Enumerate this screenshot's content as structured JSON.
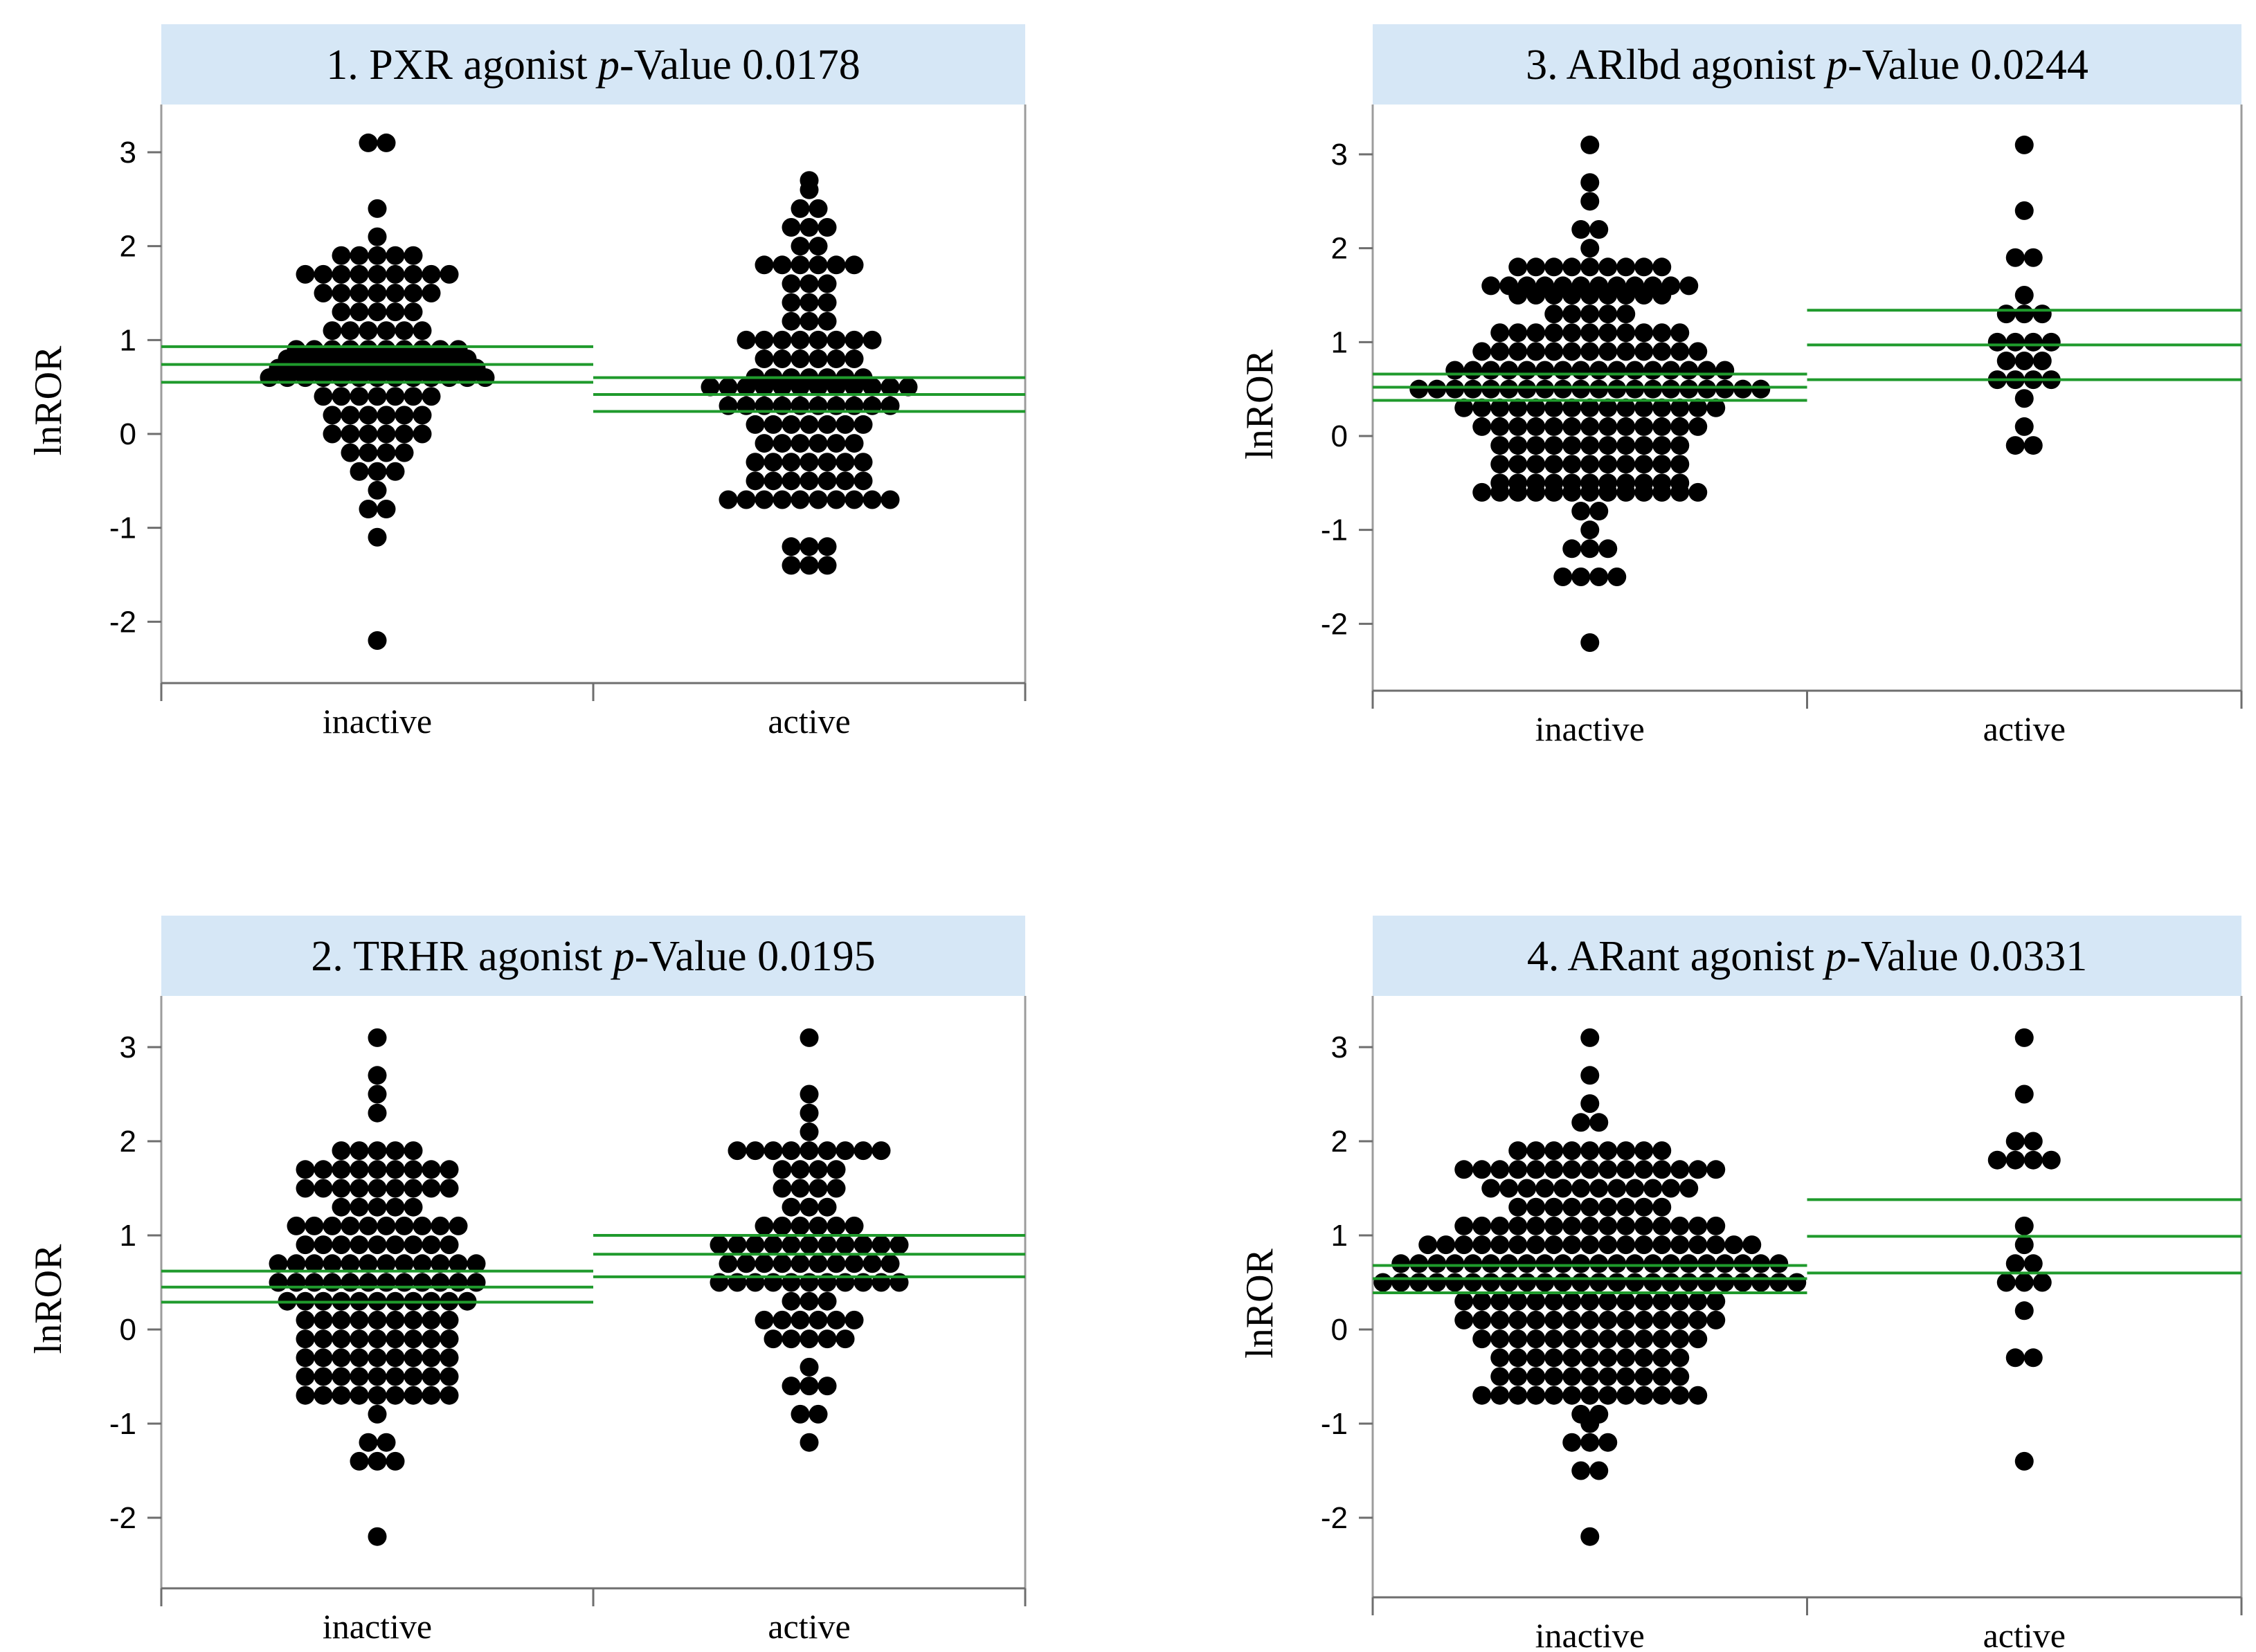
{
  "chart_data": [
    {
      "type": "scatter",
      "subtype": "dot-strip",
      "title_prefix": "1. PXR agonist",
      "title_p": "p",
      "title_suffix": "-Value",
      "title_value": "0.0178",
      "ylabel": "lnROR",
      "ylim": [
        -2.6,
        3.6
      ],
      "yticks": [
        "3",
        "2",
        "1",
        "0",
        "-1",
        "-2"
      ],
      "categories": [
        "inactive",
        "active"
      ],
      "series": [
        {
          "name": "inactive",
          "counts": {
            "3.1": 2,
            "2.4": 1,
            "2.1": 1,
            "1.9": 5,
            "1.7": 9,
            "1.5": 7,
            "1.3": 5,
            "1.1": 6,
            "0.9": 10,
            "0.8": 11,
            "0.7": 12,
            "0.6": 13,
            "0.4": 7,
            "0.2": 6,
            "0.0": 6,
            "-0.2": 4,
            "-0.4": 3,
            "-0.6": 1,
            "-0.8": 2,
            "-1.1": 1,
            "-2.2": 1
          },
          "mean": 0.74,
          "ci_upper": 0.93,
          "ci_lower": 0.55
        },
        {
          "name": "active",
          "counts": {
            "2.7": 1,
            "2.6": 1,
            "2.4": 2,
            "2.2": 3,
            "2.0": 2,
            "1.8": 6,
            "1.6": 3,
            "1.4": 3,
            "1.2": 3,
            "1.0": 8,
            "0.8": 6,
            "0.6": 7,
            "0.5": 12,
            "0.3": 10,
            "0.1": 7,
            "-0.1": 6,
            "-0.3": 7,
            "-0.5": 7,
            "-0.7": 10,
            "-1.2": 3,
            "-1.4": 3
          },
          "mean": 0.42,
          "ci_upper": 0.6,
          "ci_lower": 0.24
        }
      ]
    },
    {
      "type": "scatter",
      "subtype": "dot-strip",
      "title_prefix": "2. TRHR agonist",
      "title_p": "p",
      "title_suffix": "-Value",
      "title_value": "0.0195",
      "ylabel": "lnROR",
      "ylim": [
        -2.6,
        3.6
      ],
      "yticks": [
        "3",
        "2",
        "1",
        "0",
        "-1",
        "-2"
      ],
      "categories": [
        "inactive",
        "active"
      ],
      "series": [
        {
          "name": "inactive",
          "counts": {
            "3.1": 1,
            "2.7": 1,
            "2.5": 1,
            "2.3": 1,
            "1.9": 5,
            "1.7": 9,
            "1.5": 9,
            "1.3": 5,
            "1.1": 10,
            "0.9": 9,
            "0.7": 12,
            "0.5": 12,
            "0.3": 11,
            "0.1": 9,
            "-0.1": 9,
            "-0.3": 9,
            "-0.5": 9,
            "-0.7": 9,
            "-0.9": 1,
            "-1.2": 2,
            "-1.4": 3,
            "-2.2": 1
          },
          "mean": 0.45,
          "ci_upper": 0.62,
          "ci_lower": 0.29
        },
        {
          "name": "active",
          "counts": {
            "3.1": 1,
            "2.5": 1,
            "2.3": 1,
            "2.1": 1,
            "1.9": 9,
            "1.7": 4,
            "1.5": 4,
            "1.3": 3,
            "1.1": 6,
            "0.9": 11,
            "0.7": 10,
            "0.5": 11,
            "0.3": 3,
            "0.1": 6,
            "-0.1": 5,
            "-0.4": 1,
            "-0.6": 3,
            "-0.9": 2,
            "-1.2": 1
          },
          "mean": 0.8,
          "ci_upper": 1.0,
          "ci_lower": 0.56
        }
      ]
    },
    {
      "type": "scatter",
      "subtype": "dot-strip",
      "title_prefix": "3. ARlbd agonist",
      "title_p": "p",
      "title_suffix": "-Value",
      "title_value": "0.0244",
      "ylabel": "lnROR",
      "ylim": [
        -2.6,
        3.6
      ],
      "yticks": [
        "3",
        "2",
        "1",
        "0",
        "-1",
        "-2"
      ],
      "categories": [
        "inactive",
        "active"
      ],
      "series": [
        {
          "name": "inactive",
          "counts": {
            "3.1": 1,
            "2.7": 1,
            "2.5": 1,
            "2.2": 2,
            "2.0": 1,
            "1.8": 9,
            "1.6": 12,
            "1.5": 9,
            "1.3": 5,
            "1.1": 11,
            "0.9": 13,
            "0.7": 16,
            "0.5": 20,
            "0.3": 15,
            "0.1": 13,
            "-0.1": 11,
            "-0.3": 11,
            "-0.5": 11,
            "-0.6": 13,
            "-0.8": 2,
            "-1.0": 1,
            "-1.2": 3,
            "-1.5": 4,
            "-2.2": 1
          },
          "mean": 0.52,
          "ci_upper": 0.66,
          "ci_lower": 0.38
        },
        {
          "name": "active",
          "counts": {
            "3.1": 1,
            "2.4": 1,
            "1.9": 2,
            "1.5": 1,
            "1.3": 3,
            "1.0": 4,
            "0.8": 3,
            "0.6": 4,
            "0.4": 1,
            "0.1": 1,
            "-0.1": 2
          },
          "mean": 0.97,
          "ci_upper": 1.34,
          "ci_lower": 0.6
        }
      ]
    },
    {
      "type": "scatter",
      "subtype": "dot-strip",
      "title_prefix": "4. ARant agonist",
      "title_p": "p",
      "title_suffix": "-Value",
      "title_value": "0.0331",
      "ylabel": "lnROR",
      "ylim": [
        -2.6,
        3.6
      ],
      "yticks": [
        "3",
        "2",
        "1",
        "0",
        "-1",
        "-2"
      ],
      "categories": [
        "inactive",
        "active"
      ],
      "series": [
        {
          "name": "inactive",
          "counts": {
            "3.1": 1,
            "2.7": 1,
            "2.4": 1,
            "2.2": 2,
            "1.9": 9,
            "1.7": 15,
            "1.5": 12,
            "1.3": 9,
            "1.1": 15,
            "0.9": 19,
            "0.7": 22,
            "0.5": 24,
            "0.3": 15,
            "0.1": 15,
            "-0.1": 13,
            "-0.3": 11,
            "-0.5": 11,
            "-0.7": 13,
            "-0.9": 2,
            "-1.0": 1,
            "-1.2": 3,
            "-1.5": 2,
            "-2.2": 1
          },
          "mean": 0.54,
          "ci_upper": 0.68,
          "ci_lower": 0.39
        },
        {
          "name": "active",
          "counts": {
            "3.1": 1,
            "2.5": 1,
            "2.0": 2,
            "1.8": 4,
            "1.1": 1,
            "0.9": 1,
            "0.7": 2,
            "0.5": 3,
            "0.2": 1,
            "-0.3": 2,
            "-1.4": 1
          },
          "mean": 0.99,
          "ci_upper": 1.38,
          "ci_lower": 0.6
        }
      ]
    }
  ],
  "colors": {
    "title_bg": "#d6e7f6",
    "dot": "#000000",
    "mean_line": "#1f9a2c",
    "axis": "#6e6e6e",
    "frame": "#9c9c9c"
  }
}
